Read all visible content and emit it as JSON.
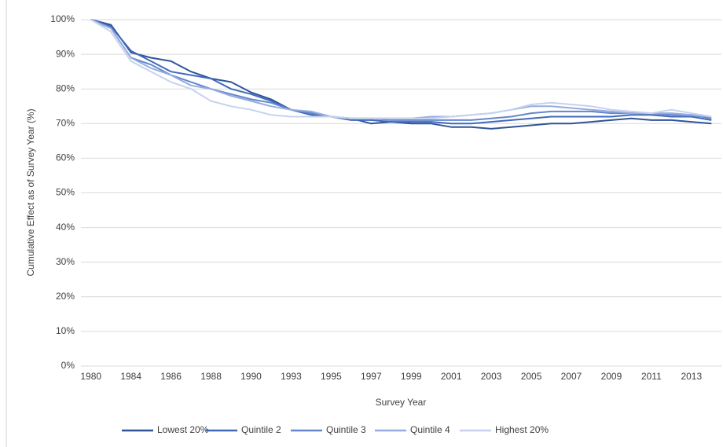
{
  "chart_data": {
    "type": "line",
    "y_axis_label": "Cumulative Effect as of Survey Year (%)",
    "x_axis_label": "Survey Year",
    "categories": [
      "1980",
      null,
      "1984",
      null,
      "1986",
      null,
      "1988",
      null,
      "1990",
      null,
      "1993",
      null,
      "1995",
      null,
      "1997",
      null,
      "1999",
      null,
      "2001",
      null,
      "2003",
      null,
      "2005",
      null,
      "2007",
      null,
      "2009",
      null,
      "2011",
      null,
      "2013",
      null
    ],
    "series": [
      {
        "name": "Lowest 20%",
        "color": "#2e5597",
        "values": [
          100,
          98.5,
          90.5,
          89,
          88,
          85,
          83,
          82,
          79,
          77,
          74,
          73,
          72,
          71.5,
          70,
          70.5,
          70,
          70,
          69,
          69,
          68.5,
          69,
          69.5,
          70,
          70,
          70.5,
          71,
          71.5,
          71,
          71,
          70.5,
          70
        ]
      },
      {
        "name": "Quintile 2",
        "color": "#4169b8",
        "values": [
          100,
          98,
          91,
          88,
          85,
          84,
          83,
          80,
          78.5,
          76.5,
          74,
          72.5,
          72,
          71,
          71,
          70.5,
          70.5,
          70.5,
          70,
          70,
          70.5,
          71,
          71.5,
          72,
          72,
          72,
          72,
          72.5,
          72.5,
          72,
          72,
          71
        ]
      },
      {
        "name": "Quintile 3",
        "color": "#6287cf",
        "values": [
          100,
          97.5,
          89,
          87,
          84,
          82,
          80,
          78.5,
          77,
          76,
          74,
          73,
          72,
          71.5,
          71.5,
          71,
          71,
          71,
          71,
          71,
          71.5,
          72,
          73,
          73.5,
          73.5,
          73.5,
          73,
          73,
          73,
          72.5,
          72.5,
          71.5
        ]
      },
      {
        "name": "Quintile 4",
        "color": "#95acdf",
        "values": [
          100,
          97.5,
          89,
          86,
          84,
          81,
          80,
          78,
          76.5,
          75,
          74,
          73.5,
          72,
          71.5,
          71.5,
          71.5,
          71.5,
          72,
          72,
          72.5,
          73,
          74,
          75,
          75,
          74.5,
          74,
          73.5,
          73,
          73,
          73,
          72.5,
          72
        ]
      },
      {
        "name": "Highest 20%",
        "color": "#c6d2ee",
        "values": [
          100,
          96.5,
          88,
          85,
          82,
          80,
          76.5,
          75,
          74,
          72.5,
          72,
          72,
          72,
          71.5,
          71.5,
          71.5,
          71.5,
          71.5,
          72,
          72.5,
          73,
          74,
          75.5,
          76,
          75.5,
          75,
          74,
          73.5,
          73,
          74,
          73,
          72
        ]
      }
    ],
    "ylim": [
      0,
      100
    ],
    "yticks": [
      {
        "value": 0,
        "label": "0%"
      },
      {
        "value": 10,
        "label": "10%"
      },
      {
        "value": 20,
        "label": "20%"
      },
      {
        "value": 30,
        "label": "30%"
      },
      {
        "value": 40,
        "label": "40%"
      },
      {
        "value": 50,
        "label": "50%"
      },
      {
        "value": 60,
        "label": "60%"
      },
      {
        "value": 70,
        "label": "70%"
      },
      {
        "value": 80,
        "label": "80%"
      },
      {
        "value": 90,
        "label": "90%"
      },
      {
        "value": 100,
        "label": "100%"
      }
    ],
    "grid": true,
    "legend": "bottom"
  }
}
